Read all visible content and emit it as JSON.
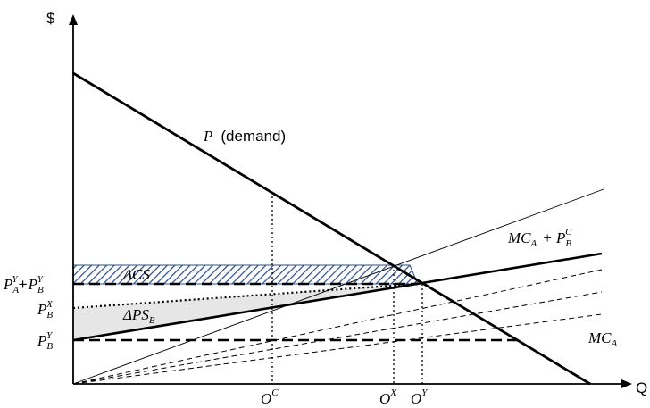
{
  "axes": {
    "y_label": "$",
    "x_label": "Q"
  },
  "curves": {
    "demand": {
      "symbol": "P",
      "note": "(demand)"
    },
    "mc_plus": {
      "main": "MC",
      "sub": "A",
      "plus": "+ P",
      "sup": "C",
      "psub": "B"
    },
    "mc_a": {
      "main": "MC",
      "sub": "A"
    }
  },
  "y_ticks": {
    "sum": {
      "p1": "P",
      "p1sup": "Y",
      "p1sub": "A",
      "plus": "+",
      "p2": "P",
      "p2sup": "Y",
      "p2sub": "B"
    },
    "pbx": {
      "p": "P",
      "sup": "X",
      "sub": "B"
    },
    "pby": {
      "p": "P",
      "sup": "Y",
      "sub": "B"
    }
  },
  "x_ticks": {
    "oc": {
      "o": "O",
      "sup": "C"
    },
    "ox": {
      "o": "O",
      "sup": "X"
    },
    "oy": {
      "o": "O",
      "sup": "Y"
    }
  },
  "regions": {
    "delta_cs": "ΔCS",
    "delta_ps": {
      "text": "ΔPS",
      "sub": "B"
    }
  },
  "colors": {
    "line": "#000000",
    "shade": "#e6e6e6",
    "hatch": "#2e4f8c"
  }
}
